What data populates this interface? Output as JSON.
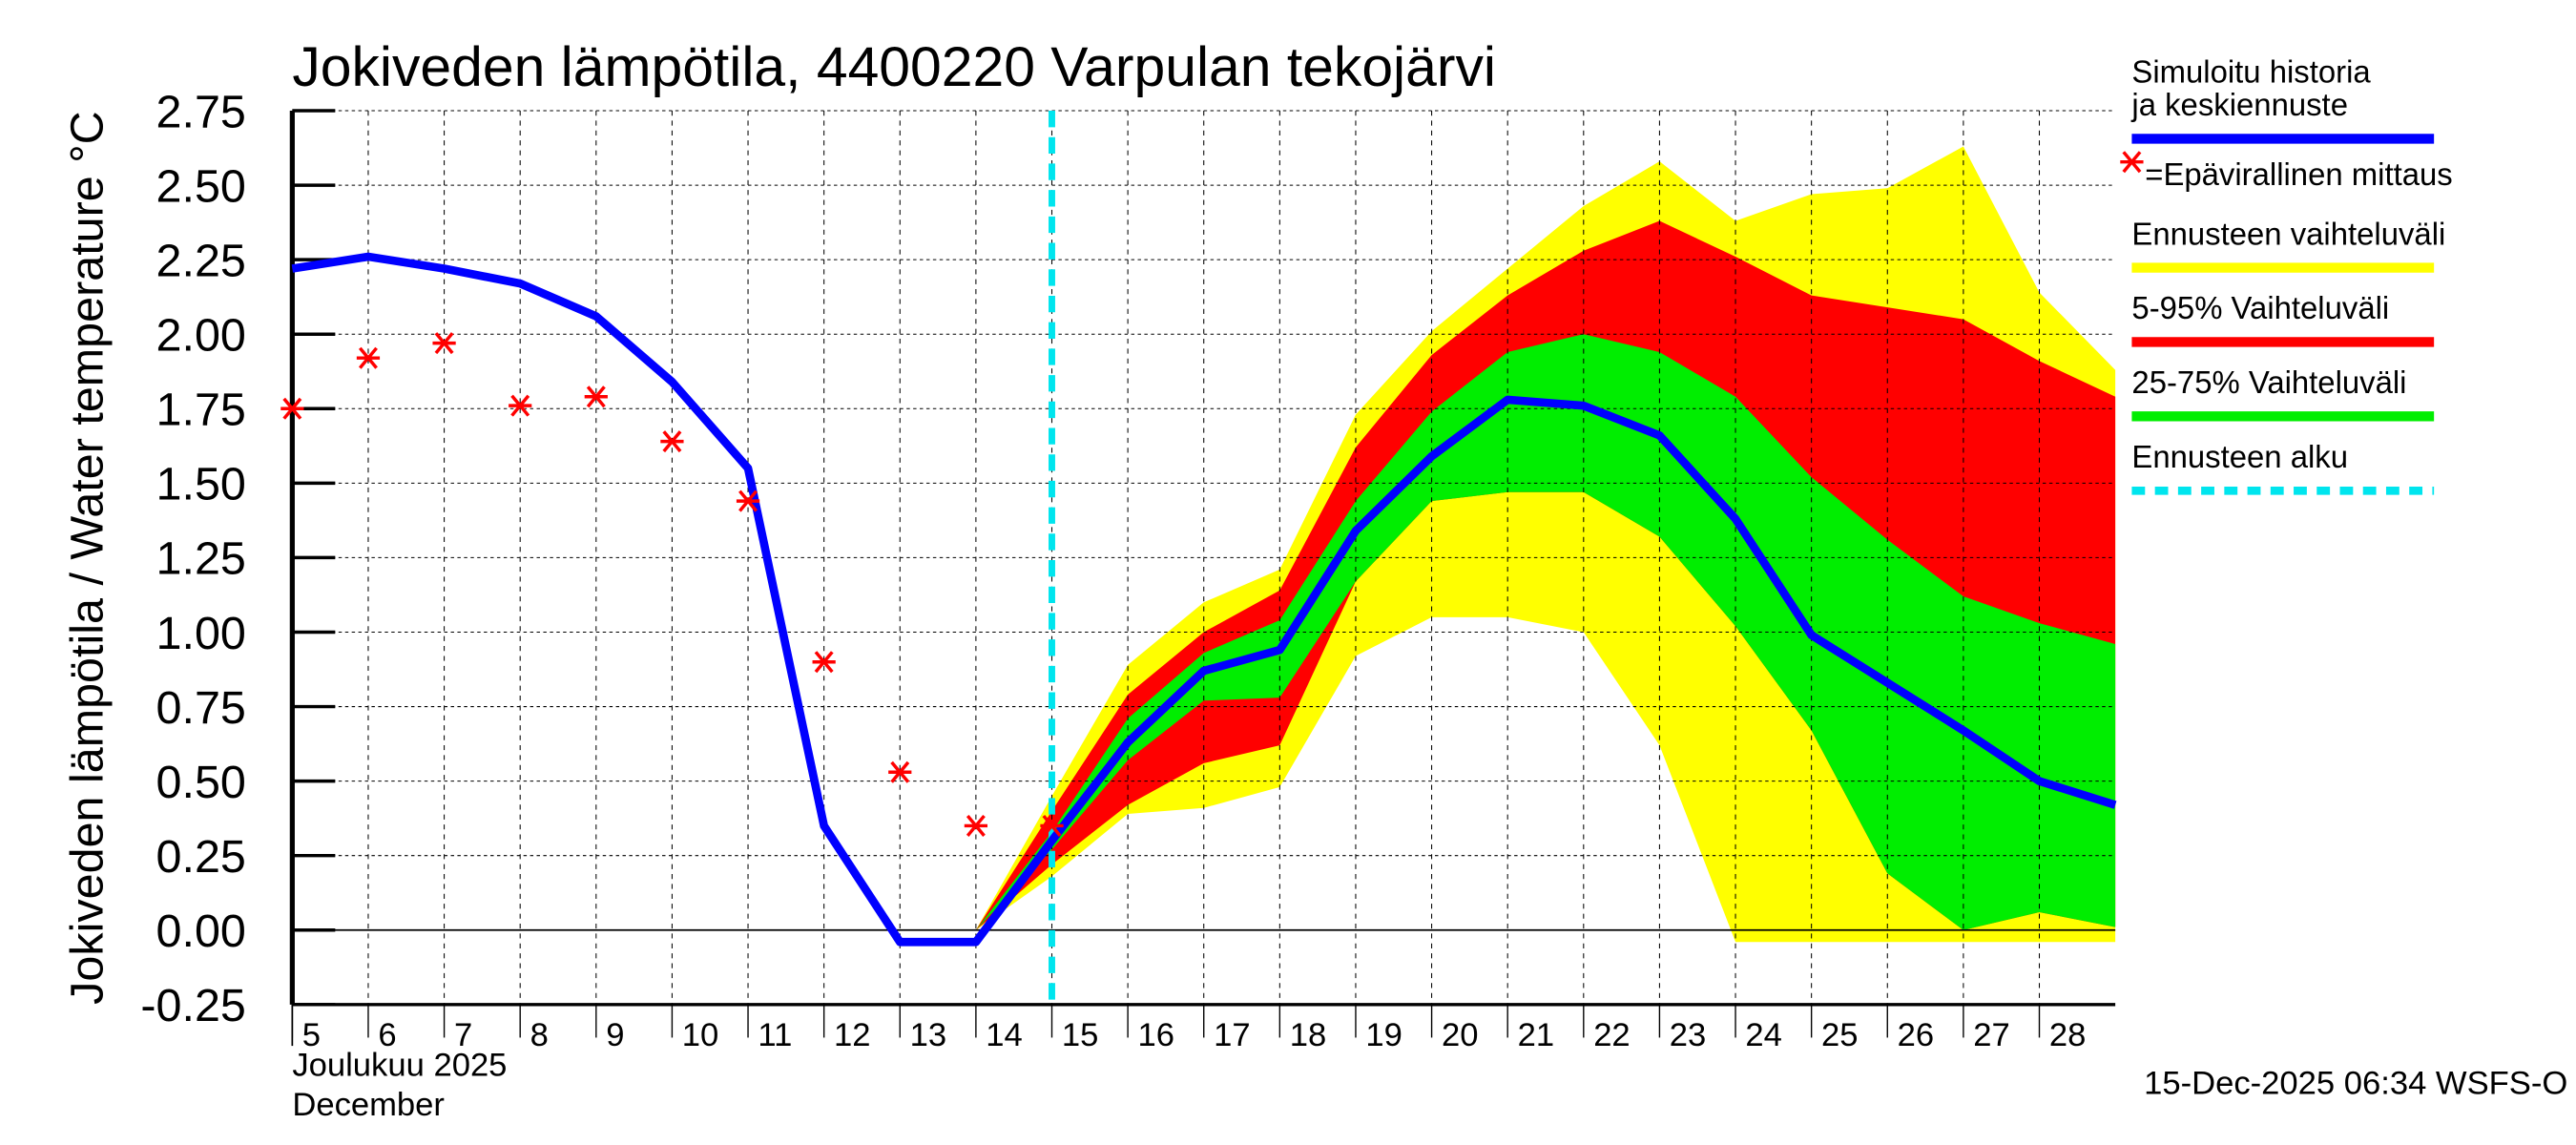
{
  "chart_data": {
    "type": "area",
    "title": "Jokiveden lämpötila, 4400220 Varpulan tekojärvi",
    "ylabel": "Jokiveden lämpötila / Water temperature   °C",
    "unit_label": "°C",
    "ylim": [
      -0.25,
      2.75
    ],
    "yticks": [
      "2.75",
      "2.50",
      "2.25",
      "2.00",
      "1.75",
      "1.50",
      "1.25",
      "1.00",
      "0.75",
      "0.50",
      "0.25",
      "0.00",
      "-0.25"
    ],
    "xlim": [
      5,
      29
    ],
    "xticks": [
      "5",
      "6",
      "7",
      "8",
      "9",
      "10",
      "11",
      "12",
      "13",
      "14",
      "15",
      "16",
      "17",
      "18",
      "19",
      "20",
      "21",
      "22",
      "23",
      "24",
      "25",
      "26",
      "27",
      "28"
    ],
    "xlabel_month_fi": "Joulukuu  2025",
    "xlabel_month_en": "December",
    "forecast_start_day": 15,
    "grid": true,
    "legend_position": "right",
    "footer": "15-Dec-2025 06:34 WSFS-O",
    "colors": {
      "simulated": "#0000ff",
      "obs": "#ff0000",
      "range_full": "#ffff00",
      "range_5_95": "#ff0000",
      "range_25_75": "#00ee00",
      "forecast_start": "#00e5ee"
    },
    "legend": [
      {
        "label": "Simuloitu historia ja keskiennuste",
        "key": "simulated"
      },
      {
        "label": "=Epävirallinen mittaus",
        "key": "obs"
      },
      {
        "label": "Ennusteen vaihteluväli",
        "key": "range_full"
      },
      {
        "label": "5-95% Vaihteluväli",
        "key": "range_5_95"
      },
      {
        "label": "25-75% Vaihteluväli",
        "key": "range_25_75"
      },
      {
        "label": "Ennusteen alku",
        "key": "forecast_start"
      }
    ],
    "series": [
      {
        "name": "Simuloitu historia ja keskiennuste",
        "x": [
          5,
          6,
          7,
          8,
          9,
          10,
          11,
          12,
          13,
          14,
          15,
          16,
          17,
          18,
          19,
          20,
          21,
          22,
          23,
          24,
          25,
          26,
          27,
          28,
          29
        ],
        "y": [
          2.22,
          2.26,
          2.22,
          2.17,
          2.06,
          1.84,
          1.55,
          0.35,
          -0.04,
          -0.04,
          0.3,
          0.63,
          0.87,
          0.94,
          1.34,
          1.59,
          1.78,
          1.76,
          1.66,
          1.38,
          0.99,
          0.83,
          0.67,
          0.5,
          0.42
        ]
      },
      {
        "name": "Epävirallinen mittaus",
        "x": [
          5,
          6,
          7,
          8,
          9,
          10,
          11,
          12,
          13,
          14,
          15
        ],
        "y": [
          1.75,
          1.92,
          1.97,
          1.76,
          1.79,
          1.64,
          1.44,
          0.9,
          0.53,
          0.35,
          0.35
        ]
      }
    ],
    "bands": [
      {
        "name": "Ennusteen vaihteluväli",
        "x": [
          14,
          15,
          16,
          17,
          18,
          19,
          20,
          21,
          22,
          23,
          24,
          25,
          26,
          27,
          28,
          29
        ],
        "low": [
          0.0,
          0.18,
          0.39,
          0.41,
          0.48,
          0.92,
          1.05,
          1.05,
          1.0,
          0.62,
          -0.04,
          -0.04,
          -0.04,
          -0.04,
          -0.04,
          -0.04
        ],
        "high": [
          0.0,
          0.45,
          0.89,
          1.1,
          1.21,
          1.73,
          2.01,
          2.22,
          2.43,
          2.58,
          2.38,
          2.47,
          2.49,
          2.63,
          2.14,
          1.88
        ]
      },
      {
        "name": "5-95% Vaihteluväli",
        "x": [
          14,
          15,
          16,
          17,
          18,
          19,
          20,
          21,
          22,
          23,
          24,
          25,
          26,
          27,
          28,
          29
        ],
        "low": [
          0.0,
          0.22,
          0.42,
          0.56,
          0.62,
          1.17,
          1.44,
          1.47,
          1.47,
          1.32,
          1.02,
          0.67,
          0.19,
          0.0,
          0.06,
          0.01
        ],
        "high": [
          0.0,
          0.4,
          0.79,
          1.0,
          1.14,
          1.62,
          1.93,
          2.13,
          2.28,
          2.38,
          2.26,
          2.13,
          2.09,
          2.05,
          1.91,
          1.79
        ]
      },
      {
        "name": "25-75% Vaihteluväli",
        "x": [
          14,
          15,
          16,
          17,
          18,
          19,
          20,
          21,
          22,
          23,
          24,
          25,
          26,
          27,
          28,
          29
        ],
        "low": [
          0.0,
          0.27,
          0.57,
          0.77,
          0.78,
          1.17,
          1.44,
          1.47,
          1.47,
          1.32,
          1.02,
          0.67,
          0.19,
          0.0,
          0.06,
          0.01
        ],
        "high": [
          0.0,
          0.33,
          0.71,
          0.93,
          1.04,
          1.44,
          1.74,
          1.94,
          2.0,
          1.94,
          1.79,
          1.52,
          1.31,
          1.12,
          1.03,
          0.96
        ]
      }
    ]
  }
}
